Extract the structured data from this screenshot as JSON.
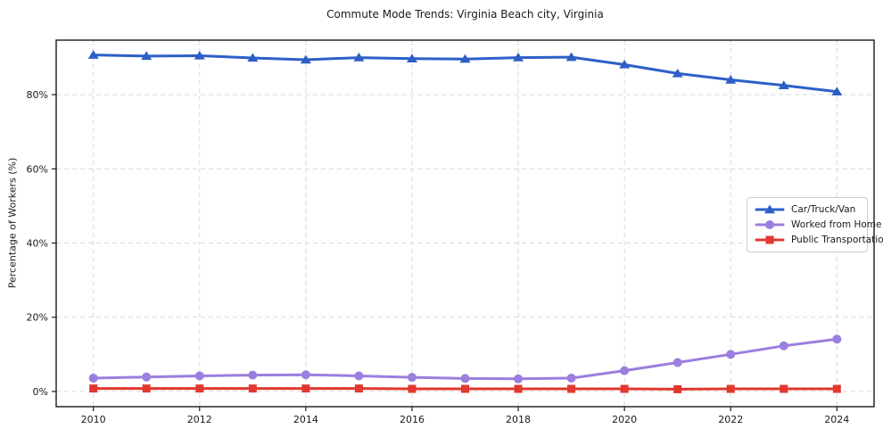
{
  "chart_data": {
    "type": "line",
    "title": "Commute Mode Trends: Virginia Beach city, Virginia",
    "xlabel": "",
    "ylabel": "Percentage of Workers (%)",
    "x": [
      2010,
      2011,
      2012,
      2013,
      2014,
      2015,
      2016,
      2017,
      2018,
      2019,
      2020,
      2021,
      2022,
      2023,
      2024
    ],
    "series": [
      {
        "name": "Car/Truck/Van",
        "marker": "triangle",
        "color": "#2d5fc7",
        "values": [
          90.7,
          90.4,
          90.5,
          89.9,
          89.4,
          90.0,
          89.7,
          89.6,
          90.0,
          90.1,
          88.1,
          85.7,
          84.0,
          82.5,
          80.8
        ]
      },
      {
        "name": "Worked from Home",
        "marker": "circle",
        "color": "#9b7ede",
        "values": [
          3.6,
          3.9,
          4.2,
          4.4,
          4.5,
          4.2,
          3.8,
          3.5,
          3.4,
          3.6,
          5.6,
          7.8,
          10.0,
          12.3,
          14.1
        ]
      },
      {
        "name": "Public Transportation",
        "marker": "square",
        "color": "#e2382f",
        "values": [
          0.8,
          0.8,
          0.8,
          0.8,
          0.8,
          0.8,
          0.7,
          0.7,
          0.7,
          0.7,
          0.7,
          0.6,
          0.7,
          0.7,
          0.7
        ]
      }
    ],
    "xticks": [
      2010,
      2012,
      2014,
      2016,
      2018,
      2020,
      2022,
      2024
    ],
    "yticks": [
      0,
      20,
      40,
      60,
      80
    ],
    "ytick_suffix": "%",
    "xlim": [
      2009.3,
      2024.7
    ],
    "ylim": [
      -4.1,
      94.7
    ],
    "grid": true,
    "legend_position": "right-middle"
  }
}
